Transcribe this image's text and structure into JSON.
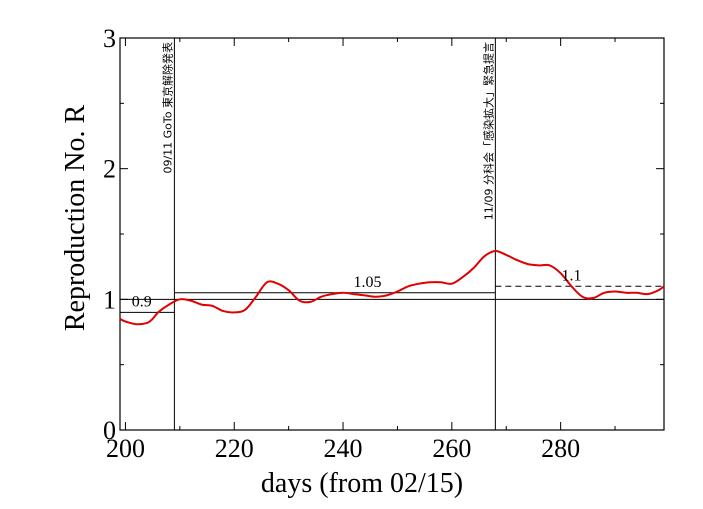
{
  "chart_data": {
    "type": "line",
    "xlabel": "days (from 02/15)",
    "ylabel": "Reproduction No.  R",
    "xlim": [
      199,
      299
    ],
    "ylim": [
      0,
      3
    ],
    "xticks": [
      200,
      220,
      240,
      260,
      280
    ],
    "yticks": [
      0,
      1,
      2,
      3
    ],
    "x_tick_labels": [
      "200",
      "220",
      "240",
      "260",
      "280"
    ],
    "y_tick_labels": [
      "0",
      "1",
      "2",
      "3"
    ],
    "grid": false,
    "series": [
      {
        "color": "#e00000",
        "x": [
          199,
          200,
          202,
          204,
          205,
          206,
          208,
          210,
          212,
          214,
          216,
          218,
          220,
          222,
          224,
          226,
          228,
          230,
          232,
          234,
          236,
          238,
          240,
          242,
          244,
          246,
          248,
          250,
          252,
          254,
          256,
          258,
          260,
          262,
          264,
          266,
          268,
          270,
          272,
          274,
          276,
          278,
          280,
          282,
          284,
          286,
          288,
          290,
          292,
          294,
          296,
          298,
          299
        ],
        "y": [
          0.85,
          0.83,
          0.81,
          0.82,
          0.85,
          0.9,
          0.96,
          1.0,
          0.99,
          0.96,
          0.95,
          0.91,
          0.9,
          0.92,
          1.02,
          1.13,
          1.12,
          1.07,
          0.99,
          0.98,
          1.02,
          1.04,
          1.05,
          1.04,
          1.03,
          1.02,
          1.03,
          1.06,
          1.1,
          1.12,
          1.13,
          1.13,
          1.12,
          1.17,
          1.24,
          1.33,
          1.37,
          1.34,
          1.3,
          1.27,
          1.26,
          1.26,
          1.2,
          1.1,
          1.02,
          1.01,
          1.05,
          1.06,
          1.05,
          1.05,
          1.04,
          1.07,
          1.1
        ]
      }
    ],
    "reference_lines": [
      {
        "type": "horizontal",
        "y": 1.0,
        "x_from": 199,
        "x_to": 299,
        "style": "solid"
      },
      {
        "type": "horizontal",
        "y": 0.9,
        "x_from": 199,
        "x_to": 209,
        "style": "solid"
      },
      {
        "type": "horizontal",
        "y": 1.05,
        "x_from": 209,
        "x_to": 268,
        "style": "solid"
      },
      {
        "type": "horizontal",
        "y": 1.1,
        "x_from": 268,
        "x_to": 299,
        "style": "dashed"
      },
      {
        "type": "vertical",
        "x": 209
      },
      {
        "type": "vertical",
        "x": 268
      }
    ],
    "level_labels": [
      {
        "text": "0.9",
        "x": 203,
        "y": 0.9
      },
      {
        "text": "1.05",
        "x": 244.5,
        "y": 1.05
      },
      {
        "text": "1.1",
        "x": 282,
        "y": 1.1
      }
    ],
    "annotations": [
      {
        "text": "09/11 GoTo 東京解除発表",
        "x": 209,
        "y_top": 3.0
      },
      {
        "text": "11/09 分科会「感染拡大」緊急提言",
        "x": 268,
        "y_top": 3.0
      }
    ]
  }
}
